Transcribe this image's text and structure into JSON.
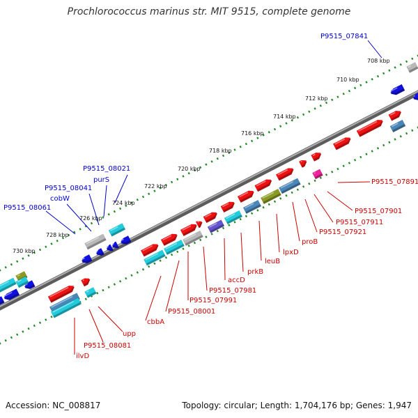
{
  "title": "Prochlorococcus marinus str. MIT 9515, complete genome",
  "accession": "Accession: NC_008817",
  "stats": "Topology: circular; Length: 1,704,176 bp; Genes: 1,947",
  "kbp_ticks": [
    "708 kbp",
    "710 kbp",
    "712 kbp",
    "714 kbp",
    "716 kbp",
    "718 kbp",
    "720 kbp",
    "722 kbp",
    "724 kbp",
    "726 kbp",
    "728 kbp",
    "730 kbp"
  ],
  "gene_labels": [
    {
      "text": "P9515_07841",
      "color": "#0000cc"
    },
    {
      "text": "P9515_08021",
      "color": "#0000cc"
    },
    {
      "text": "purS",
      "color": "#0000cc"
    },
    {
      "text": "P9515_08041",
      "color": "#0000cc"
    },
    {
      "text": "cobW",
      "color": "#0000cc"
    },
    {
      "text": "P9515_08061",
      "color": "#0000cc"
    },
    {
      "text": "P9515_07891",
      "color": "#cc0000"
    },
    {
      "text": "P9515_07901",
      "color": "#cc0000"
    },
    {
      "text": "P9515_07911",
      "color": "#cc0000"
    },
    {
      "text": "P9515_07921",
      "color": "#cc0000"
    },
    {
      "text": "proB",
      "color": "#cc0000"
    },
    {
      "text": "lpxD",
      "color": "#cc0000"
    },
    {
      "text": "leuB",
      "color": "#cc0000"
    },
    {
      "text": "prkB",
      "color": "#cc0000"
    },
    {
      "text": "accD",
      "color": "#cc0000"
    },
    {
      "text": "P9515_07981",
      "color": "#cc0000"
    },
    {
      "text": "P9515_07991",
      "color": "#cc0000"
    },
    {
      "text": "P9515_08001",
      "color": "#cc0000"
    },
    {
      "text": "cbbA",
      "color": "#cc0000"
    },
    {
      "text": "upp",
      "color": "#cc0000"
    },
    {
      "text": "P9515_08081",
      "color": "#cc0000"
    },
    {
      "text": "ilvD",
      "color": "#cc0000"
    }
  ],
  "colors": {
    "forward_gene": "#ee1111",
    "reverse_gene": "#1111dd",
    "tick_dots": "#228822",
    "backbone": "#7a7a7a",
    "cyan_gene": "#22ccdd",
    "steel_gene": "#4a86b8",
    "olive_gene": "#8a9a22",
    "gray_gene": "#b8b8b8",
    "magenta_gene": "#ee2299",
    "purple_gene": "#6655cc"
  }
}
